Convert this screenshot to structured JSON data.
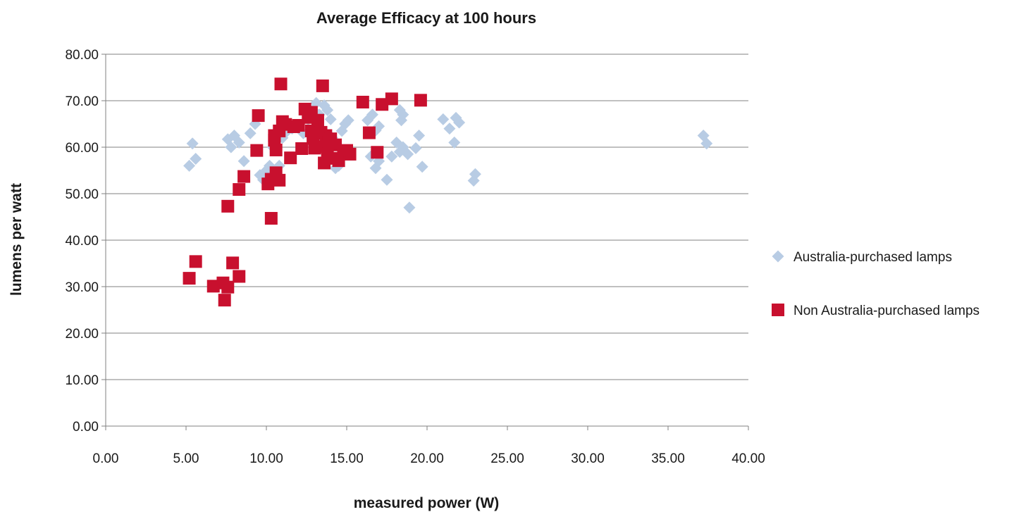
{
  "chart_data": {
    "type": "scatter",
    "title": "Average Efficacy at 100 hours",
    "xlabel": "measured power (W)",
    "ylabel": "lumens per watt",
    "xlim": [
      0,
      40
    ],
    "ylim": [
      0,
      80
    ],
    "x_ticks": [
      "0.00",
      "5.00",
      "10.00",
      "15.00",
      "20.00",
      "25.00",
      "30.00",
      "35.00",
      "40.00"
    ],
    "y_ticks": [
      "0.00",
      "10.00",
      "20.00",
      "30.00",
      "40.00",
      "50.00",
      "60.00",
      "70.00",
      "80.00"
    ],
    "grid": "horizontal",
    "legend_position": "right",
    "series": [
      {
        "name": "Australia-purchased lamps",
        "marker": "diamond",
        "color": "#b8cce4",
        "points": [
          [
            5.2,
            56
          ],
          [
            5.4,
            60.8
          ],
          [
            5.6,
            57.5
          ],
          [
            7.6,
            61.7
          ],
          [
            7.8,
            60
          ],
          [
            8.0,
            62.5
          ],
          [
            8.3,
            61
          ],
          [
            8.6,
            57
          ],
          [
            9.0,
            63
          ],
          [
            9.3,
            65
          ],
          [
            9.6,
            54
          ],
          [
            9.8,
            53
          ],
          [
            10.0,
            55
          ],
          [
            10.2,
            56
          ],
          [
            10.4,
            60
          ],
          [
            10.6,
            55
          ],
          [
            10.8,
            56
          ],
          [
            11.0,
            62
          ],
          [
            11.3,
            63.5
          ],
          [
            11.6,
            64
          ],
          [
            12.0,
            64.5
          ],
          [
            12.3,
            63
          ],
          [
            12.6,
            66
          ],
          [
            12.9,
            68
          ],
          [
            13.1,
            69.5
          ],
          [
            13.3,
            67
          ],
          [
            13.6,
            69
          ],
          [
            13.8,
            68
          ],
          [
            14.0,
            66
          ],
          [
            14.1,
            62
          ],
          [
            14.3,
            55.5
          ],
          [
            14.5,
            56
          ],
          [
            14.7,
            63.5
          ],
          [
            14.9,
            65
          ],
          [
            15.1,
            65.8
          ],
          [
            16.3,
            65.8
          ],
          [
            16.6,
            67
          ],
          [
            16.8,
            63.6
          ],
          [
            17.0,
            64.5
          ],
          [
            16.5,
            58
          ],
          [
            16.8,
            55.5
          ],
          [
            17.0,
            57
          ],
          [
            17.5,
            53
          ],
          [
            17.8,
            58
          ],
          [
            18.1,
            61
          ],
          [
            18.3,
            59
          ],
          [
            18.5,
            60
          ],
          [
            18.8,
            58.5
          ],
          [
            18.9,
            47
          ],
          [
            19.3,
            59.8
          ],
          [
            19.5,
            62.5
          ],
          [
            19.7,
            55.8
          ],
          [
            18.3,
            68
          ],
          [
            18.5,
            67
          ],
          [
            18.4,
            65.8
          ],
          [
            21.0,
            66
          ],
          [
            21.4,
            64
          ],
          [
            21.7,
            61
          ],
          [
            21.8,
            66.3
          ],
          [
            22.0,
            65.3
          ],
          [
            23.0,
            54.2
          ],
          [
            22.9,
            52.8
          ],
          [
            37.2,
            62.5
          ],
          [
            37.4,
            60.8
          ]
        ]
      },
      {
        "name": "Non Australia-purchased lamps",
        "marker": "square",
        "color": "#c8102e",
        "points": [
          [
            5.2,
            31.8
          ],
          [
            5.6,
            35.4
          ],
          [
            6.7,
            30.1
          ],
          [
            7.3,
            30.8
          ],
          [
            7.4,
            27.1
          ],
          [
            7.6,
            29.9
          ],
          [
            7.9,
            35.1
          ],
          [
            8.3,
            32.2
          ],
          [
            7.6,
            47.3
          ],
          [
            8.3,
            50.9
          ],
          [
            8.6,
            53.7
          ],
          [
            9.4,
            59.3
          ],
          [
            9.5,
            66.8
          ],
          [
            10.1,
            52.1
          ],
          [
            10.3,
            53.1
          ],
          [
            10.3,
            44.7
          ],
          [
            10.6,
            54.5
          ],
          [
            10.8,
            52.9
          ],
          [
            10.6,
            59.4
          ],
          [
            10.5,
            61.5
          ],
          [
            10.9,
            73.6
          ],
          [
            10.8,
            63.5
          ],
          [
            11.0,
            65.5
          ],
          [
            11.2,
            64.9
          ],
          [
            11.5,
            57.7
          ],
          [
            11.7,
            64.4
          ],
          [
            12.0,
            64.7
          ],
          [
            12.2,
            59.7
          ],
          [
            12.4,
            68.2
          ],
          [
            12.6,
            66.4
          ],
          [
            12.8,
            63.5
          ],
          [
            12.9,
            61.9
          ],
          [
            13.0,
            59.8
          ],
          [
            13.2,
            65.8
          ],
          [
            13.4,
            63.2
          ],
          [
            13.5,
            73.2
          ],
          [
            13.6,
            56.6
          ],
          [
            13.5,
            60.1
          ],
          [
            13.7,
            62.5
          ],
          [
            13.8,
            58.5
          ],
          [
            14.0,
            61.8
          ],
          [
            14.1,
            57.6
          ],
          [
            14.3,
            60.5
          ],
          [
            14.5,
            57.1
          ],
          [
            14.8,
            59.2
          ],
          [
            15.0,
            59.3
          ],
          [
            15.2,
            58.5
          ],
          [
            16.0,
            69.7
          ],
          [
            16.4,
            63.1
          ],
          [
            16.9,
            58.9
          ],
          [
            17.2,
            69.2
          ],
          [
            17.8,
            70.4
          ],
          [
            19.6,
            70.1
          ],
          [
            10.5,
            62.5
          ],
          [
            12.8,
            67.5
          ],
          [
            13.1,
            63
          ],
          [
            13.9,
            61
          ]
        ]
      }
    ]
  }
}
